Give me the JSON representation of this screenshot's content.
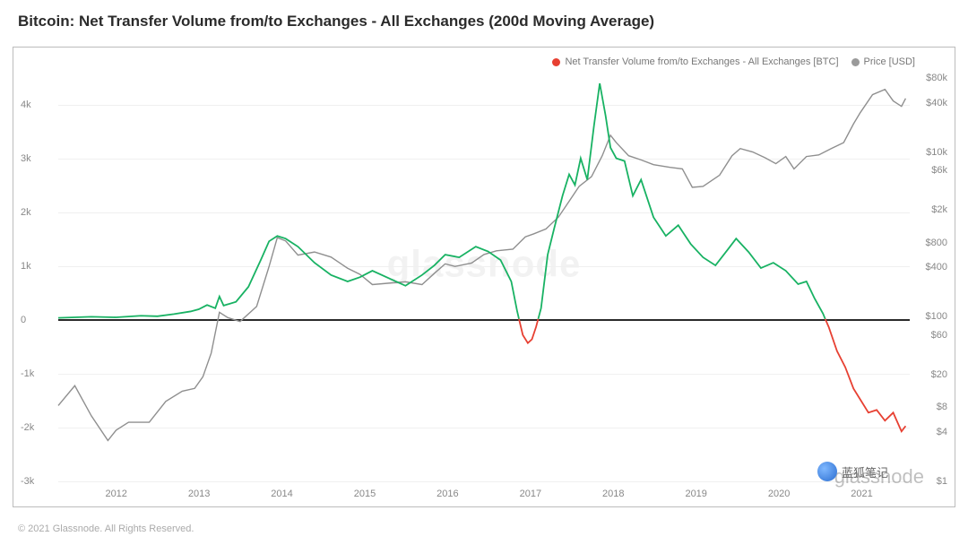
{
  "title": "Bitcoin: Net Transfer Volume from/to Exchanges - All Exchanges (200d Moving Average)",
  "watermark": "glassnode",
  "copyright": "© 2021 Glassnode. All Rights Reserved.",
  "badge": "蓝狐笔记",
  "legend": [
    {
      "label": "Net Transfer Volume from/to Exchanges - All Exchanges [BTC]",
      "color": "#e74032"
    },
    {
      "label": "Price [USD]",
      "color": "#9a9a9a"
    }
  ],
  "colors": {
    "volume_pos": "#18b263",
    "volume_neg": "#e74032",
    "price": "#8f8f8f",
    "grid": "#f0f0f0",
    "zero": "#2a2a2a",
    "line_width": 1.4
  },
  "chart": {
    "x_range": [
      2011.3,
      2021.6
    ],
    "x_ticks": [
      2012,
      2013,
      2014,
      2015,
      2016,
      2017,
      2018,
      2019,
      2020,
      2021
    ],
    "left_axis": {
      "min": -3000,
      "max": 4500,
      "ticks": [
        -3000,
        -2000,
        -1000,
        0,
        1000,
        2000,
        3000,
        4000
      ],
      "labels": [
        "-3k",
        "-2k",
        "-1k",
        "0",
        "1k",
        "2k",
        "3k",
        "4k"
      ]
    },
    "right_axis": {
      "type": "log",
      "min": 1,
      "max": 80000,
      "ticks": [
        1,
        4,
        8,
        20,
        60,
        100,
        400,
        800,
        2000,
        6000,
        10000,
        40000,
        80000
      ],
      "labels": [
        "$1",
        "$4",
        "$8",
        "$20",
        "$60",
        "$100",
        "$400",
        "$800",
        "$2k",
        "$6k",
        "$10k",
        "$40k",
        "$80k"
      ]
    },
    "price": [
      [
        2011.3,
        8
      ],
      [
        2011.5,
        14
      ],
      [
        2011.7,
        6
      ],
      [
        2011.9,
        3
      ],
      [
        2012.0,
        4
      ],
      [
        2012.15,
        5
      ],
      [
        2012.4,
        5
      ],
      [
        2012.6,
        9
      ],
      [
        2012.8,
        12
      ],
      [
        2012.95,
        13
      ],
      [
        2013.05,
        18
      ],
      [
        2013.15,
        35
      ],
      [
        2013.25,
        110
      ],
      [
        2013.35,
        95
      ],
      [
        2013.5,
        85
      ],
      [
        2013.7,
        130
      ],
      [
        2013.85,
        400
      ],
      [
        2013.95,
        900
      ],
      [
        2014.05,
        820
      ],
      [
        2014.2,
        550
      ],
      [
        2014.4,
        600
      ],
      [
        2014.6,
        520
      ],
      [
        2014.8,
        380
      ],
      [
        2014.95,
        320
      ],
      [
        2015.1,
        240
      ],
      [
        2015.3,
        250
      ],
      [
        2015.5,
        260
      ],
      [
        2015.7,
        240
      ],
      [
        2015.85,
        330
      ],
      [
        2015.98,
        430
      ],
      [
        2016.1,
        400
      ],
      [
        2016.3,
        440
      ],
      [
        2016.45,
        560
      ],
      [
        2016.6,
        620
      ],
      [
        2016.8,
        650
      ],
      [
        2016.95,
        920
      ],
      [
        2017.05,
        1000
      ],
      [
        2017.2,
        1150
      ],
      [
        2017.35,
        1600
      ],
      [
        2017.48,
        2500
      ],
      [
        2017.6,
        3800
      ],
      [
        2017.75,
        5000
      ],
      [
        2017.88,
        9000
      ],
      [
        2017.98,
        16000
      ],
      [
        2018.05,
        13000
      ],
      [
        2018.2,
        9000
      ],
      [
        2018.35,
        8000
      ],
      [
        2018.5,
        7000
      ],
      [
        2018.7,
        6500
      ],
      [
        2018.85,
        6200
      ],
      [
        2018.97,
        3700
      ],
      [
        2019.1,
        3800
      ],
      [
        2019.3,
        5200
      ],
      [
        2019.45,
        9000
      ],
      [
        2019.55,
        11000
      ],
      [
        2019.7,
        10000
      ],
      [
        2019.85,
        8500
      ],
      [
        2019.98,
        7200
      ],
      [
        2020.1,
        8800
      ],
      [
        2020.2,
        6200
      ],
      [
        2020.35,
        8800
      ],
      [
        2020.5,
        9200
      ],
      [
        2020.65,
        11000
      ],
      [
        2020.8,
        13000
      ],
      [
        2020.92,
        22000
      ],
      [
        2021.0,
        30000
      ],
      [
        2021.15,
        50000
      ],
      [
        2021.3,
        58000
      ],
      [
        2021.4,
        42000
      ],
      [
        2021.5,
        36000
      ],
      [
        2021.55,
        45000
      ]
    ],
    "volume": [
      [
        2011.3,
        20
      ],
      [
        2011.7,
        40
      ],
      [
        2012.0,
        30
      ],
      [
        2012.3,
        60
      ],
      [
        2012.5,
        50
      ],
      [
        2012.7,
        90
      ],
      [
        2012.9,
        140
      ],
      [
        2013.0,
        180
      ],
      [
        2013.1,
        260
      ],
      [
        2013.2,
        200
      ],
      [
        2013.25,
        420
      ],
      [
        2013.3,
        250
      ],
      [
        2013.45,
        320
      ],
      [
        2013.6,
        600
      ],
      [
        2013.75,
        1100
      ],
      [
        2013.85,
        1450
      ],
      [
        2013.95,
        1550
      ],
      [
        2014.05,
        1500
      ],
      [
        2014.2,
        1350
      ],
      [
        2014.4,
        1050
      ],
      [
        2014.6,
        820
      ],
      [
        2014.8,
        700
      ],
      [
        2014.95,
        780
      ],
      [
        2015.1,
        900
      ],
      [
        2015.3,
        760
      ],
      [
        2015.5,
        620
      ],
      [
        2015.7,
        820
      ],
      [
        2015.85,
        1000
      ],
      [
        2015.98,
        1200
      ],
      [
        2016.15,
        1150
      ],
      [
        2016.35,
        1350
      ],
      [
        2016.5,
        1260
      ],
      [
        2016.65,
        1100
      ],
      [
        2016.78,
        700
      ],
      [
        2016.85,
        150
      ],
      [
        2016.92,
        -300
      ],
      [
        2016.98,
        -450
      ],
      [
        2017.03,
        -380
      ],
      [
        2017.08,
        -150
      ],
      [
        2017.14,
        200
      ],
      [
        2017.22,
        1200
      ],
      [
        2017.3,
        1700
      ],
      [
        2017.4,
        2300
      ],
      [
        2017.48,
        2700
      ],
      [
        2017.55,
        2500
      ],
      [
        2017.62,
        3000
      ],
      [
        2017.7,
        2600
      ],
      [
        2017.78,
        3600
      ],
      [
        2017.85,
        4400
      ],
      [
        2017.92,
        3800
      ],
      [
        2017.98,
        3200
      ],
      [
        2018.05,
        3000
      ],
      [
        2018.15,
        2950
      ],
      [
        2018.25,
        2300
      ],
      [
        2018.35,
        2600
      ],
      [
        2018.5,
        1900
      ],
      [
        2018.65,
        1550
      ],
      [
        2018.8,
        1750
      ],
      [
        2018.95,
        1400
      ],
      [
        2019.1,
        1150
      ],
      [
        2019.25,
        1000
      ],
      [
        2019.4,
        1300
      ],
      [
        2019.5,
        1500
      ],
      [
        2019.65,
        1250
      ],
      [
        2019.8,
        950
      ],
      [
        2019.95,
        1050
      ],
      [
        2020.1,
        900
      ],
      [
        2020.25,
        650
      ],
      [
        2020.35,
        700
      ],
      [
        2020.45,
        380
      ],
      [
        2020.55,
        100
      ],
      [
        2020.62,
        -150
      ],
      [
        2020.72,
        -600
      ],
      [
        2020.82,
        -900
      ],
      [
        2020.92,
        -1300
      ],
      [
        2021.0,
        -1500
      ],
      [
        2021.1,
        -1750
      ],
      [
        2021.2,
        -1700
      ],
      [
        2021.3,
        -1900
      ],
      [
        2021.4,
        -1750
      ],
      [
        2021.5,
        -2100
      ],
      [
        2021.55,
        -2000
      ]
    ]
  }
}
